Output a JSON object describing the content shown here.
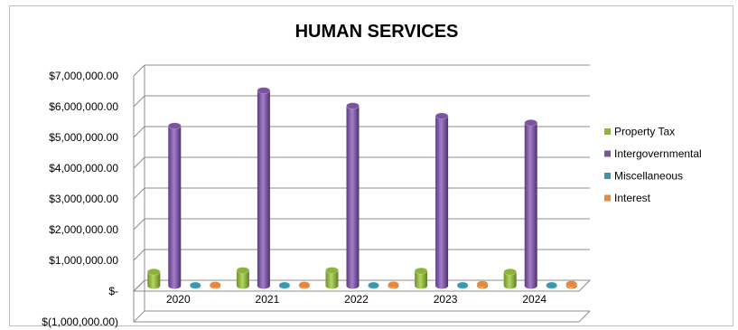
{
  "chart_data": {
    "type": "bar",
    "title": "HUMAN SERVICES",
    "xlabel": "",
    "ylabel": "",
    "categories": [
      "2020",
      "2021",
      "2022",
      "2023",
      "2024"
    ],
    "y_ticks": [
      "$(1,000,000.00)",
      "$-",
      "$1,000,000.00",
      "$2,000,000.00",
      "$3,000,000.00",
      "$4,000,000.00",
      "$5,000,000.00",
      "$6,000,000.00",
      "$7,000,000.00"
    ],
    "ylim": [
      -1000000,
      7000000
    ],
    "grid": true,
    "legend_position": "right",
    "series": [
      {
        "name": "Property Tax",
        "color": "#8db33a",
        "values": [
          450000,
          500000,
          500000,
          480000,
          450000
        ]
      },
      {
        "name": "Intergovernmental",
        "color": "#7b53a0",
        "values": [
          5200000,
          6350000,
          5850000,
          5520000,
          5300000
        ]
      },
      {
        "name": "Miscellaneous",
        "color": "#3a98ad",
        "values": [
          15000,
          15000,
          15000,
          15000,
          15000
        ]
      },
      {
        "name": "Interest",
        "color": "#e8883a",
        "values": [
          30000,
          30000,
          35000,
          55000,
          60000
        ]
      }
    ]
  }
}
